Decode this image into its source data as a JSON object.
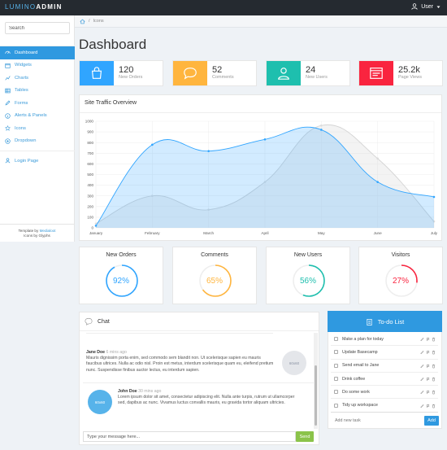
{
  "brand": {
    "part1": "LUMINO",
    "part2": "ADMIN"
  },
  "user_menu": {
    "label": "User"
  },
  "search": {
    "placeholder": "Search"
  },
  "sidebar": {
    "items": [
      {
        "label": "Dashboard",
        "icon": "dashboard-icon"
      },
      {
        "label": "Widgets",
        "icon": "calendar-icon"
      },
      {
        "label": "Charts",
        "icon": "chart-icon"
      },
      {
        "label": "Tables",
        "icon": "table-icon"
      },
      {
        "label": "Forms",
        "icon": "pencil-icon"
      },
      {
        "label": "Alerts & Panels",
        "icon": "info-icon"
      },
      {
        "label": "Icons",
        "icon": "star-icon"
      },
      {
        "label": "Dropdown",
        "icon": "plus-circle-icon"
      },
      {
        "label": "Login Page",
        "icon": "user-icon"
      }
    ],
    "footer": {
      "line1_prefix": "Template by ",
      "line1_link": "Medialoot",
      "line2": "Icons by Glyphs"
    }
  },
  "breadcrumb": {
    "current": "Icons"
  },
  "page_title": "Dashboard",
  "stats": [
    {
      "value": "120",
      "label": "New Orders",
      "color": "#30a5ff",
      "icon": "bag-icon"
    },
    {
      "value": "52",
      "label": "Comments",
      "color": "#ffb53e",
      "icon": "comment-icon"
    },
    {
      "value": "24",
      "label": "New Users",
      "color": "#1ebfae",
      "icon": "user-icon"
    },
    {
      "value": "25.2k",
      "label": "Page Views",
      "color": "#f9243f",
      "icon": "app-window-icon"
    }
  ],
  "traffic": {
    "title": "Site Traffic Overview"
  },
  "chart_data": {
    "type": "area",
    "categories": [
      "January",
      "February",
      "March",
      "April",
      "May",
      "June",
      "July"
    ],
    "ylim": [
      0,
      1000
    ],
    "yticks": [
      "0",
      "100",
      "200",
      "300",
      "400",
      "500",
      "600",
      "700",
      "800",
      "900",
      "1000"
    ],
    "grid": true,
    "series": [
      {
        "values": [
          40,
          300,
          170,
          430,
          960,
          650,
          60
        ],
        "color": "#dcdcdc"
      },
      {
        "values": [
          20,
          780,
          720,
          830,
          920,
          430,
          290
        ],
        "color": "#30a5ff"
      }
    ]
  },
  "circles": [
    {
      "title": "New Orders",
      "value": "92%",
      "percent": 92,
      "color": "#30a5ff"
    },
    {
      "title": "Comments",
      "value": "65%",
      "percent": 65,
      "color": "#ffb53e"
    },
    {
      "title": "New Users",
      "value": "56%",
      "percent": 56,
      "color": "#1ebfae"
    },
    {
      "title": "Visitors",
      "value": "27%",
      "percent": 27,
      "color": "#f9243f"
    }
  ],
  "chat": {
    "title": "Chat",
    "messages": [
      {
        "name": "Jane Doe",
        "time": "6 mins ago",
        "text": "Mauris dignissim porta enim, sed commodo sem blandit non. Ut scelerisque sapien eu mauris faucibus ultrices. Nulla ac odio nisl. Proin est metus, interdum scelerisque quam eu, eleifend pretium nunc. Suspendisse finibus auctor lectus, eu interdum sapien.",
        "avatar": "60x60"
      },
      {
        "name": "John Doe",
        "time": "30 mins ago",
        "text": "Lorem ipsum dolor sit amet, consectetur adipiscing elit. Nulla ante turpis, rutrum ut ullamcorper sed, dapibus ac nunc. Vivamus luctus convallis mauris, eu gravida tortor aliquam ultricies.",
        "avatar": "60x60"
      }
    ],
    "input_placeholder": "Type your message here...",
    "send_label": "Send"
  },
  "todo": {
    "title": "To-do List",
    "items": [
      "Make a plan for today",
      "Update Basecamp",
      "Send email to Jane",
      "Drink coffee",
      "Do some work",
      "Tidy up workspace"
    ],
    "input_placeholder": "Add new task",
    "add_label": "Add"
  }
}
